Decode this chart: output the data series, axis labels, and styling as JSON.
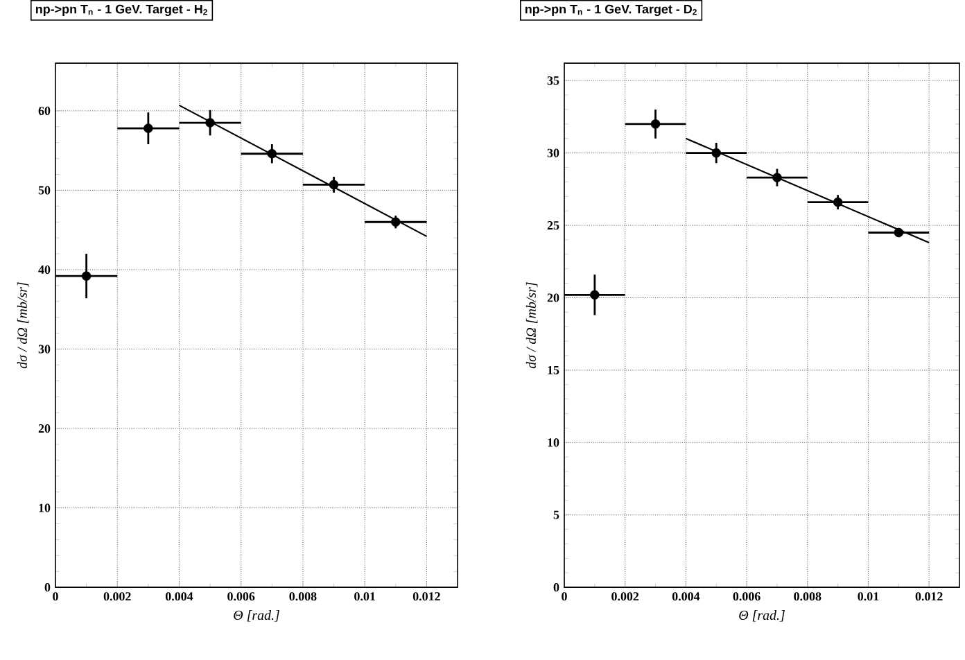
{
  "chart_data": [
    {
      "type": "scatter",
      "title": "np->pn    T$_{n}$ - 1 GeV.    Target - H$_{2}$",
      "xlabel": "Θ [rad.]",
      "ylabel": "dσ / dΩ [mb/sr]",
      "xlim": [
        0,
        0.013
      ],
      "ylim": [
        0,
        66
      ],
      "xticks": [
        0,
        0.002,
        0.004,
        0.006,
        0.008,
        0.01,
        0.012
      ],
      "yticks": [
        0,
        10,
        20,
        30,
        40,
        50,
        60
      ],
      "grid": true,
      "series": [
        {
          "color": "#000000",
          "marker": "circle",
          "x": [
            0.001,
            0.003,
            0.005,
            0.007,
            0.009,
            0.011
          ],
          "values": [
            39.2,
            57.8,
            58.5,
            54.6,
            50.7,
            46.0
          ],
          "errors": [
            2.8,
            2.0,
            1.6,
            1.2,
            1.0,
            0.8
          ],
          "xerrors": [
            0.001,
            0.001,
            0.001,
            0.001,
            0.001,
            0.001
          ]
        },
        {
          "type": "line",
          "color": "#000000",
          "x": [
            0.004,
            0.012
          ],
          "values": [
            60.7,
            44.2
          ]
        }
      ]
    },
    {
      "type": "scatter",
      "title": "np->pn    T$_{n}$ - 1 GeV.    Target - D$_{2}$",
      "xlabel": "Θ [rad.]",
      "ylabel": "dσ / dΩ [mb/sr]",
      "xlim": [
        0,
        0.013
      ],
      "ylim": [
        0,
        36.2
      ],
      "xticks": [
        0,
        0.002,
        0.004,
        0.006,
        0.008,
        0.01,
        0.012
      ],
      "yticks": [
        0,
        5,
        10,
        15,
        20,
        25,
        30,
        35
      ],
      "grid": true,
      "series": [
        {
          "color": "#000000",
          "marker": "circle",
          "x": [
            0.001,
            0.003,
            0.005,
            0.007,
            0.009,
            0.011
          ],
          "values": [
            20.2,
            32.0,
            30.0,
            28.3,
            26.6,
            24.5
          ],
          "errors": [
            1.4,
            1.0,
            0.7,
            0.6,
            0.5,
            0.3
          ],
          "xerrors": [
            0.001,
            0.001,
            0.001,
            0.001,
            0.001,
            0.001
          ]
        },
        {
          "type": "line",
          "color": "#000000",
          "x": [
            0.004,
            0.012
          ],
          "values": [
            31.0,
            23.8
          ]
        }
      ]
    }
  ]
}
